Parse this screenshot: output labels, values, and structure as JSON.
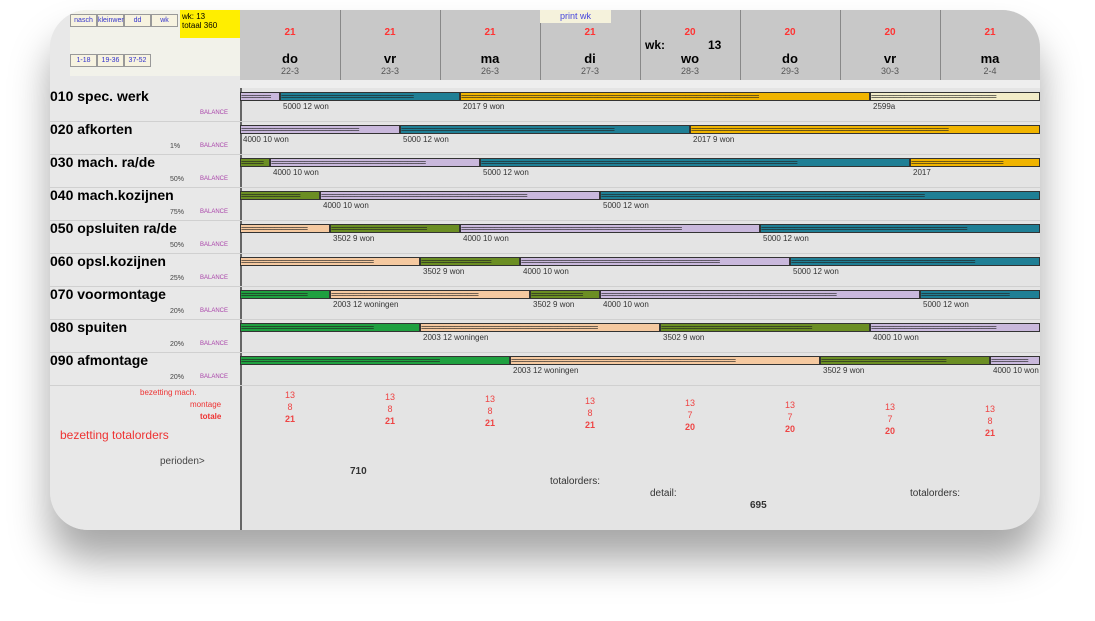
{
  "control": {
    "wk_label": "wk: 13",
    "stat": "totaal 360",
    "buttons": [
      "nasch",
      "kleinwerk",
      "dd",
      "wk",
      "1-18",
      "19-36",
      "37-52"
    ]
  },
  "header": {
    "print_label": "print wk",
    "week_label": "wk:",
    "week_number": "13",
    "days": [
      {
        "day": "do",
        "date": "22-3",
        "count": "21"
      },
      {
        "day": "vr",
        "date": "23-3",
        "count": "21"
      },
      {
        "day": "ma",
        "date": "26-3",
        "count": "21"
      },
      {
        "day": "di",
        "date": "27-3",
        "count": "21"
      },
      {
        "day": "wo",
        "date": "28-3",
        "count": "20"
      },
      {
        "day": "do",
        "date": "29-3",
        "count": "20"
      },
      {
        "day": "vr",
        "date": "30-3",
        "count": "20"
      },
      {
        "day": "ma",
        "date": "2-4",
        "count": "21"
      }
    ]
  },
  "balance_label": "BALANCE",
  "colors": {
    "lavender": "#c9b8dc",
    "teal": "#1f7f95",
    "gold": "#f0b400",
    "cream": "#f2ecc8",
    "olive": "#6b8e23",
    "peach": "#f5c9a0",
    "green": "#1fa040"
  },
  "rows": [
    {
      "label": "010 spec. werk",
      "pct": "",
      "bars": [
        {
          "s": 0,
          "e": 0.4,
          "c": "lavender",
          "t": ""
        },
        {
          "s": 0.4,
          "e": 2.2,
          "c": "teal",
          "t": "5000 12 won"
        },
        {
          "s": 2.2,
          "e": 6.3,
          "c": "gold",
          "t": "2017 9 won"
        },
        {
          "s": 6.3,
          "e": 8,
          "c": "cream",
          "t": "2599a"
        }
      ]
    },
    {
      "label": "020 afkorten",
      "pct": "1%",
      "bars": [
        {
          "s": 0,
          "e": 1.6,
          "c": "lavender",
          "t": "4000 10 won"
        },
        {
          "s": 1.6,
          "e": 4.5,
          "c": "teal",
          "t": "5000 12 won"
        },
        {
          "s": 4.5,
          "e": 8,
          "c": "gold",
          "t": "2017 9 won"
        }
      ]
    },
    {
      "label": "030 mach. ra/de",
      "pct": "50%",
      "bars": [
        {
          "s": 0,
          "e": 0.3,
          "c": "olive",
          "t": ""
        },
        {
          "s": 0.3,
          "e": 2.4,
          "c": "lavender",
          "t": "4000 10 won"
        },
        {
          "s": 2.4,
          "e": 6.7,
          "c": "teal",
          "t": "5000 12 won"
        },
        {
          "s": 6.7,
          "e": 8,
          "c": "gold",
          "t": "2017"
        }
      ]
    },
    {
      "label": "040 mach.kozijnen",
      "pct": "75%",
      "bars": [
        {
          "s": 0,
          "e": 0.8,
          "c": "olive",
          "t": ""
        },
        {
          "s": 0.8,
          "e": 3.6,
          "c": "lavender",
          "t": "4000 10 won"
        },
        {
          "s": 3.6,
          "e": 8,
          "c": "teal",
          "t": "5000 12 won"
        }
      ]
    },
    {
      "label": "050 opsluiten ra/de",
      "pct": "50%",
      "bars": [
        {
          "s": 0,
          "e": 0.9,
          "c": "peach",
          "t": ""
        },
        {
          "s": 0.9,
          "e": 2.2,
          "c": "olive",
          "t": "3502 9 won"
        },
        {
          "s": 2.2,
          "e": 5.2,
          "c": "lavender",
          "t": "4000 10 won"
        },
        {
          "s": 5.2,
          "e": 8,
          "c": "teal",
          "t": "5000 12 won"
        }
      ]
    },
    {
      "label": "060 opsl.kozijnen",
      "pct": "25%",
      "bars": [
        {
          "s": 0,
          "e": 1.8,
          "c": "peach",
          "t": ""
        },
        {
          "s": 1.8,
          "e": 2.8,
          "c": "olive",
          "t": "3502 9 won"
        },
        {
          "s": 2.8,
          "e": 5.5,
          "c": "lavender",
          "t": "4000 10 won"
        },
        {
          "s": 5.5,
          "e": 8,
          "c": "teal",
          "t": "5000 12 won"
        }
      ]
    },
    {
      "label": "070 voormontage",
      "pct": "20%",
      "bars": [
        {
          "s": 0,
          "e": 0.9,
          "c": "green",
          "t": ""
        },
        {
          "s": 0.9,
          "e": 2.9,
          "c": "peach",
          "t": "2003 12 woningen"
        },
        {
          "s": 2.9,
          "e": 3.6,
          "c": "olive",
          "t": "3502 9 won"
        },
        {
          "s": 3.6,
          "e": 6.8,
          "c": "lavender",
          "t": "4000 10 won"
        },
        {
          "s": 6.8,
          "e": 8,
          "c": "teal",
          "t": "5000 12 won"
        }
      ]
    },
    {
      "label": "080 spuiten",
      "pct": "20%",
      "bars": [
        {
          "s": 0,
          "e": 1.8,
          "c": "green",
          "t": ""
        },
        {
          "s": 1.8,
          "e": 4.2,
          "c": "peach",
          "t": "2003 12 woningen"
        },
        {
          "s": 4.2,
          "e": 6.3,
          "c": "olive",
          "t": "3502 9 won"
        },
        {
          "s": 6.3,
          "e": 8,
          "c": "lavender",
          "t": "4000 10 won"
        }
      ]
    },
    {
      "label": "090 afmontage",
      "pct": "20%",
      "bars": [
        {
          "s": 0,
          "e": 2.7,
          "c": "green",
          "t": ""
        },
        {
          "s": 2.7,
          "e": 5.8,
          "c": "peach",
          "t": "2003 12 woningen"
        },
        {
          "s": 5.8,
          "e": 7.5,
          "c": "olive",
          "t": "3502 9 won"
        },
        {
          "s": 7.5,
          "e": 8,
          "c": "lavender",
          "t": "4000 10 won"
        }
      ]
    }
  ],
  "bottom": {
    "bezetting_mach": "bezetting mach.",
    "montage": "montage",
    "totale": "totale",
    "bezetting_totalorders": "bezetting totalorders",
    "perioden": "perioden>",
    "total1": "710",
    "totalorders": "totalorders:",
    "detail": "detail:",
    "total2": "695",
    "cols": [
      {
        "mach": "13",
        "mont": "8",
        "tot": "21"
      },
      {
        "mach": "13",
        "mont": "8",
        "tot": "21"
      },
      {
        "mach": "13",
        "mont": "8",
        "tot": "21"
      },
      {
        "mach": "13",
        "mont": "8",
        "tot": "21"
      },
      {
        "mach": "13",
        "mont": "7",
        "tot": "20"
      },
      {
        "mach": "13",
        "mont": "7",
        "tot": "20"
      },
      {
        "mach": "13",
        "mont": "7",
        "tot": "20"
      },
      {
        "mach": "13",
        "mont": "8",
        "tot": "21"
      }
    ]
  }
}
